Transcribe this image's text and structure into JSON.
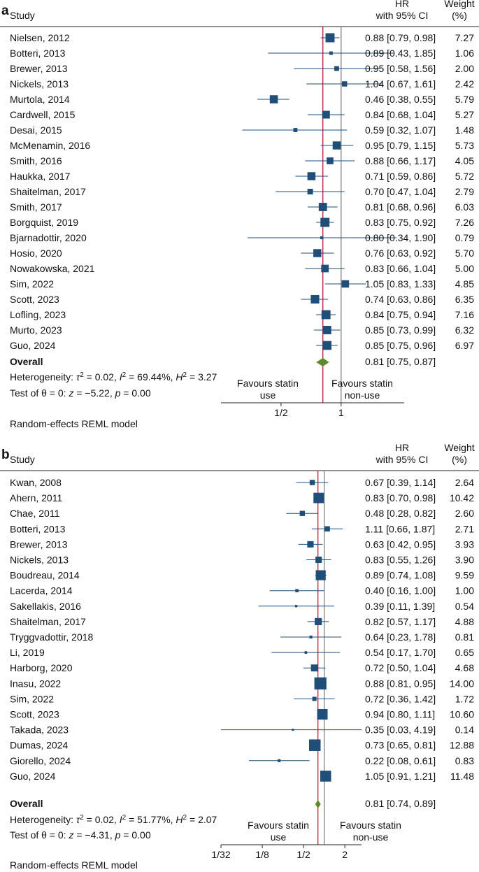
{
  "chart_data": [
    {
      "type": "forest",
      "panel_label": "a",
      "column_headers": {
        "study": "Study",
        "hr_line1": "HR",
        "hr_line2": "with 95% CI",
        "weight_line1": "Weight",
        "weight_line2": "(%)"
      },
      "x_scale": "log",
      "xlim": [
        0.25,
        2.07
      ],
      "x_ticks": [
        {
          "value": 0.5,
          "label": "1/2"
        },
        {
          "value": 1,
          "label": "1"
        }
      ],
      "reference_line": 1,
      "overall_line": 0.81,
      "marker_color": "#1f4e79",
      "diamond_color": "#5e8a2a",
      "line_color": "#c0264a",
      "studies": [
        {
          "study": "Nielsen, 2012",
          "hr": 0.88,
          "lo": 0.79,
          "hi": 0.98,
          "ci_text": "0.88 [0.79, 0.98]",
          "weight": 7.27,
          "weight_text": "7.27"
        },
        {
          "study": "Botteri, 2013",
          "hr": 0.89,
          "lo": 0.43,
          "hi": 1.85,
          "ci_text": "0.89 [0.43, 1.85]",
          "weight": 1.06,
          "weight_text": "1.06"
        },
        {
          "study": "Brewer, 2013",
          "hr": 0.95,
          "lo": 0.58,
          "hi": 1.56,
          "ci_text": "0.95 [0.58, 1.56]",
          "weight": 2.0,
          "weight_text": "2.00"
        },
        {
          "study": "Nickels, 2013",
          "hr": 1.04,
          "lo": 0.67,
          "hi": 1.61,
          "ci_text": "1.04 [0.67, 1.61]",
          "weight": 2.42,
          "weight_text": "2.42"
        },
        {
          "study": "Murtola, 2014",
          "hr": 0.46,
          "lo": 0.38,
          "hi": 0.55,
          "ci_text": "0.46 [0.38, 0.55]",
          "weight": 5.79,
          "weight_text": "5.79"
        },
        {
          "study": "Cardwell, 2015",
          "hr": 0.84,
          "lo": 0.68,
          "hi": 1.04,
          "ci_text": "0.84 [0.68, 1.04]",
          "weight": 5.27,
          "weight_text": "5.27"
        },
        {
          "study": "Desai, 2015",
          "hr": 0.59,
          "lo": 0.32,
          "hi": 1.07,
          "ci_text": "0.59 [0.32, 1.07]",
          "weight": 1.48,
          "weight_text": "1.48"
        },
        {
          "study": "McMenamin, 2016",
          "hr": 0.95,
          "lo": 0.79,
          "hi": 1.15,
          "ci_text": "0.95 [0.79, 1.15]",
          "weight": 5.73,
          "weight_text": "5.73"
        },
        {
          "study": "Smith, 2016",
          "hr": 0.88,
          "lo": 0.66,
          "hi": 1.17,
          "ci_text": "0.88 [0.66, 1.17]",
          "weight": 4.05,
          "weight_text": "4.05"
        },
        {
          "study": "Haukka, 2017",
          "hr": 0.71,
          "lo": 0.59,
          "hi": 0.86,
          "ci_text": "0.71 [0.59, 0.86]",
          "weight": 5.72,
          "weight_text": "5.72"
        },
        {
          "study": "Shaitelman, 2017",
          "hr": 0.7,
          "lo": 0.47,
          "hi": 1.04,
          "ci_text": "0.70 [0.47, 1.04]",
          "weight": 2.79,
          "weight_text": "2.79"
        },
        {
          "study": "Smith, 2017",
          "hr": 0.81,
          "lo": 0.68,
          "hi": 0.96,
          "ci_text": "0.81 [0.68, 0.96]",
          "weight": 6.03,
          "weight_text": "6.03"
        },
        {
          "study": "Borgquist, 2019",
          "hr": 0.83,
          "lo": 0.75,
          "hi": 0.92,
          "ci_text": "0.83 [0.75, 0.92]",
          "weight": 7.26,
          "weight_text": "7.26"
        },
        {
          "study": "Bjarnadottir, 2020",
          "hr": 0.8,
          "lo": 0.34,
          "hi": 1.9,
          "ci_text": "0.80 [0.34, 1.90]",
          "weight": 0.79,
          "weight_text": "0.79"
        },
        {
          "study": "Hosio, 2020",
          "hr": 0.76,
          "lo": 0.63,
          "hi": 0.92,
          "ci_text": "0.76 [0.63, 0.92]",
          "weight": 5.7,
          "weight_text": "5.70"
        },
        {
          "study": "Nowakowska, 2021",
          "hr": 0.83,
          "lo": 0.66,
          "hi": 1.04,
          "ci_text": "0.83 [0.66, 1.04]",
          "weight": 5.0,
          "weight_text": "5.00"
        },
        {
          "study": "Sim, 2022",
          "hr": 1.05,
          "lo": 0.83,
          "hi": 1.33,
          "ci_text": "1.05 [0.83, 1.33]",
          "weight": 4.85,
          "weight_text": "4.85"
        },
        {
          "study": "Scott, 2023",
          "hr": 0.74,
          "lo": 0.63,
          "hi": 0.86,
          "ci_text": "0.74 [0.63, 0.86]",
          "weight": 6.35,
          "weight_text": "6.35"
        },
        {
          "study": "Lofling, 2023",
          "hr": 0.84,
          "lo": 0.75,
          "hi": 0.94,
          "ci_text": "0.84 [0.75, 0.94]",
          "weight": 7.16,
          "weight_text": "7.16"
        },
        {
          "study": "Murto, 2023",
          "hr": 0.85,
          "lo": 0.73,
          "hi": 0.99,
          "ci_text": "0.85 [0.73, 0.99]",
          "weight": 6.32,
          "weight_text": "6.32"
        },
        {
          "study": "Guo, 2024",
          "hr": 0.85,
          "lo": 0.75,
          "hi": 0.96,
          "ci_text": "0.85 [0.75, 0.96]",
          "weight": 6.97,
          "weight_text": "6.97"
        }
      ],
      "overall": {
        "label": "Overall",
        "hr": 0.81,
        "lo": 0.75,
        "hi": 0.87,
        "ci_text": "0.81 [0.75, 0.87]"
      },
      "heterogeneity": {
        "prefix": "Heterogeneity: ",
        "tau": "τ",
        "tau_sq_value": " = 0.02, ",
        "i": "I",
        "i_sq_value": " = 69.44%, ",
        "h": "H",
        "h_sq_value": " = 3.27",
        "sup": "2"
      },
      "test": {
        "prefix": "Test of θ = 0: ",
        "z": "z",
        "z_value": " = −5.22, ",
        "p": "p",
        "p_value": " = 0.00"
      },
      "favours_left": [
        "Favours statin",
        "use"
      ],
      "favours_right": [
        "Favours statin",
        "non-use"
      ],
      "model": "Random-effects REML model"
    },
    {
      "type": "forest",
      "panel_label": "b",
      "column_headers": {
        "study": "Study",
        "hr_line1": "HR",
        "hr_line2": "with 95% CI",
        "weight_line1": "Weight",
        "weight_line2": "(%)"
      },
      "x_scale": "log",
      "xlim": [
        0.03125,
        3.5
      ],
      "x_ticks": [
        {
          "value": 0.03125,
          "label": "1/32"
        },
        {
          "value": 0.125,
          "label": "1/8"
        },
        {
          "value": 0.5,
          "label": "1/2"
        },
        {
          "value": 2,
          "label": "2"
        }
      ],
      "reference_line": 1,
      "overall_line": 0.81,
      "marker_color": "#1f4e79",
      "diamond_color": "#5e8a2a",
      "line_color": "#c0264a",
      "studies": [
        {
          "study": "Kwan, 2008",
          "hr": 0.67,
          "lo": 0.39,
          "hi": 1.14,
          "ci_text": "0.67 [0.39, 1.14]",
          "weight": 2.64,
          "weight_text": "2.64"
        },
        {
          "study": "Ahern, 2011",
          "hr": 0.83,
          "lo": 0.7,
          "hi": 0.98,
          "ci_text": "0.83 [0.70, 0.98]",
          "weight": 10.42,
          "weight_text": "10.42"
        },
        {
          "study": "Chae, 2011",
          "hr": 0.48,
          "lo": 0.28,
          "hi": 0.82,
          "ci_text": "0.48 [0.28, 0.82]",
          "weight": 2.6,
          "weight_text": "2.60"
        },
        {
          "study": "Botteri, 2013",
          "hr": 1.11,
          "lo": 0.66,
          "hi": 1.87,
          "ci_text": "1.11 [0.66, 1.87]",
          "weight": 2.71,
          "weight_text": "2.71"
        },
        {
          "study": "Brewer, 2013",
          "hr": 0.63,
          "lo": 0.42,
          "hi": 0.95,
          "ci_text": "0.63 [0.42, 0.95]",
          "weight": 3.93,
          "weight_text": "3.93"
        },
        {
          "study": "Nickels, 2013",
          "hr": 0.83,
          "lo": 0.55,
          "hi": 1.26,
          "ci_text": "0.83 [0.55, 1.26]",
          "weight": 3.9,
          "weight_text": "3.90"
        },
        {
          "study": "Boudreau, 2014",
          "hr": 0.89,
          "lo": 0.74,
          "hi": 1.08,
          "ci_text": "0.89 [0.74, 1.08]",
          "weight": 9.59,
          "weight_text": "9.59"
        },
        {
          "study": "Lacerda, 2014",
          "hr": 0.4,
          "lo": 0.16,
          "hi": 1.0,
          "ci_text": "0.40 [0.16, 1.00]",
          "weight": 1.0,
          "weight_text": "1.00"
        },
        {
          "study": "Sakellakis, 2016",
          "hr": 0.39,
          "lo": 0.11,
          "hi": 1.39,
          "ci_text": "0.39 [0.11, 1.39]",
          "weight": 0.54,
          "weight_text": "0.54"
        },
        {
          "study": "Shaitelman, 2017",
          "hr": 0.82,
          "lo": 0.57,
          "hi": 1.17,
          "ci_text": "0.82 [0.57, 1.17]",
          "weight": 4.88,
          "weight_text": "4.88"
        },
        {
          "study": "Tryggvadottir, 2018",
          "hr": 0.64,
          "lo": 0.23,
          "hi": 1.78,
          "ci_text": "0.64 [0.23, 1.78]",
          "weight": 0.81,
          "weight_text": "0.81"
        },
        {
          "study": "Li, 2019",
          "hr": 0.54,
          "lo": 0.17,
          "hi": 1.7,
          "ci_text": "0.54 [0.17, 1.70]",
          "weight": 0.65,
          "weight_text": "0.65"
        },
        {
          "study": "Harborg, 2020",
          "hr": 0.72,
          "lo": 0.5,
          "hi": 1.04,
          "ci_text": "0.72 [0.50, 1.04]",
          "weight": 4.68,
          "weight_text": "4.68"
        },
        {
          "study": "Inasu, 2022",
          "hr": 0.88,
          "lo": 0.81,
          "hi": 0.95,
          "ci_text": "0.88 [0.81, 0.95]",
          "weight": 14.0,
          "weight_text": "14.00"
        },
        {
          "study": "Sim, 2022",
          "hr": 0.72,
          "lo": 0.36,
          "hi": 1.42,
          "ci_text": "0.72 [0.36, 1.42]",
          "weight": 1.72,
          "weight_text": "1.72"
        },
        {
          "study": "Scott, 2023",
          "hr": 0.94,
          "lo": 0.8,
          "hi": 1.11,
          "ci_text": "0.94 [0.80, 1.11]",
          "weight": 10.6,
          "weight_text": "10.60"
        },
        {
          "study": "Takada, 2023",
          "hr": 0.35,
          "lo": 0.03,
          "hi": 4.19,
          "ci_text": "0.35 [0.03, 4.19]",
          "weight": 0.14,
          "weight_text": "0.14"
        },
        {
          "study": "Dumas, 2024",
          "hr": 0.73,
          "lo": 0.65,
          "hi": 0.81,
          "ci_text": "0.73 [0.65, 0.81]",
          "weight": 12.88,
          "weight_text": "12.88"
        },
        {
          "study": "Giorello, 2024",
          "hr": 0.22,
          "lo": 0.08,
          "hi": 0.61,
          "ci_text": "0.22 [0.08, 0.61]",
          "weight": 0.83,
          "weight_text": "0.83"
        },
        {
          "study": "Guo, 2024",
          "hr": 1.05,
          "lo": 0.91,
          "hi": 1.21,
          "ci_text": "1.05 [0.91, 1.21]",
          "weight": 11.48,
          "weight_text": "11.48"
        }
      ],
      "overall": {
        "label": "Overall",
        "hr": 0.81,
        "lo": 0.74,
        "hi": 0.89,
        "ci_text": "0.81 [0.74, 0.89]"
      },
      "heterogeneity": {
        "prefix": "Heterogeneity: ",
        "tau": "τ",
        "tau_sq_value": " = 0.02, ",
        "i": "I",
        "i_sq_value": " = 51.77%, ",
        "h": "H",
        "h_sq_value": " = 2.07",
        "sup": "2"
      },
      "test": {
        "prefix": "Test of θ = 0: ",
        "z": "z",
        "z_value": " = −4.31, ",
        "p": "p",
        "p_value": " = 0.00"
      },
      "favours_left": [
        "Favours statin",
        "use"
      ],
      "favours_right": [
        "Favours statin",
        "non-use"
      ],
      "model": "Random-effects REML model"
    }
  ]
}
